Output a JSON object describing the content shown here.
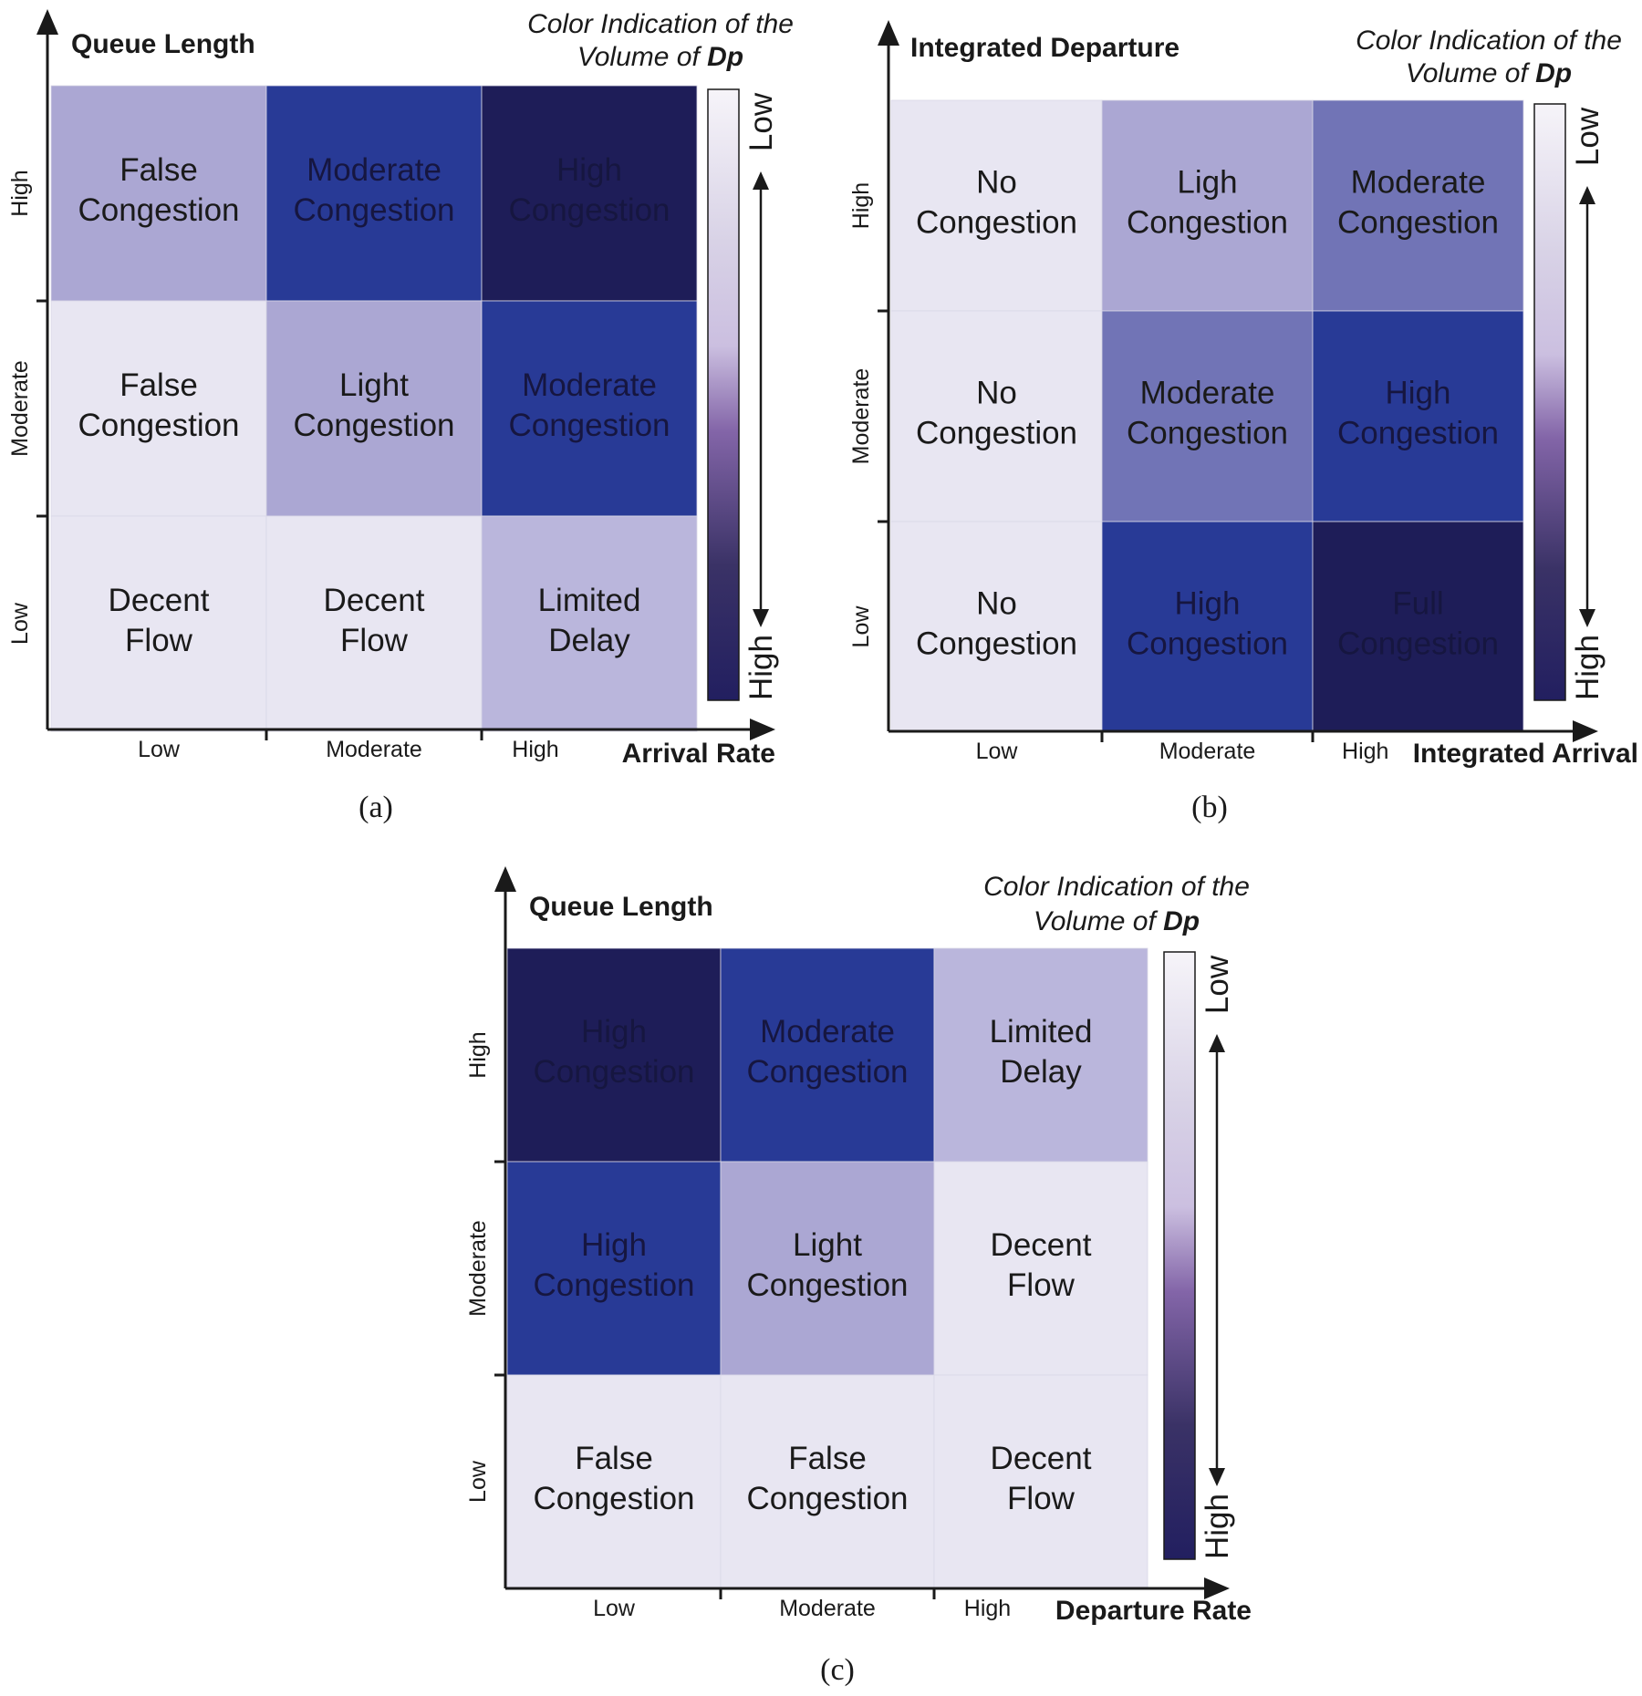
{
  "colors": {
    "very_light": "#e8e6f2",
    "light": "#aba7d3",
    "light_alt": "#bab6dc",
    "medium": "#7174b6",
    "strong": "#283a96",
    "dark": "#1e1d58",
    "text_dark": "#1a1a1a"
  },
  "panels": [
    {
      "id": "a",
      "caption": "(a)",
      "y_title": "Queue Length",
      "x_title": "Arrival Rate",
      "x_ticks": [
        "Low",
        "Moderate",
        "High"
      ],
      "y_ticks": [
        "Low",
        "Moderate",
        "High"
      ],
      "legend": {
        "title_line1": "Color Indication of the",
        "title_line2_prefix": "Volume of ",
        "title_line2_emph": "Dp",
        "top": "Low",
        "bottom": "High"
      },
      "cells": [
        [
          {
            "lines": [
              "False",
              "Congestion"
            ],
            "level": "light"
          },
          {
            "lines": [
              "Moderate",
              "Congestion"
            ],
            "level": "strong"
          },
          {
            "lines": [
              "High",
              "Congestion"
            ],
            "level": "dark"
          }
        ],
        [
          {
            "lines": [
              "False",
              "Congestion"
            ],
            "level": "very_light"
          },
          {
            "lines": [
              "Light",
              "Congestion"
            ],
            "level": "light"
          },
          {
            "lines": [
              "Moderate",
              "Congestion"
            ],
            "level": "strong"
          }
        ],
        [
          {
            "lines": [
              "Decent",
              "Flow"
            ],
            "level": "very_light"
          },
          {
            "lines": [
              "Decent",
              "Flow"
            ],
            "level": "very_light"
          },
          {
            "lines": [
              "Limited",
              "Delay"
            ],
            "level": "light_alt"
          }
        ]
      ]
    },
    {
      "id": "b",
      "caption": "(b)",
      "y_title": "Integrated Departure",
      "x_title": "Integrated Arrival",
      "x_ticks": [
        "Low",
        "Moderate",
        "High"
      ],
      "y_ticks": [
        "Low",
        "Moderate",
        "High"
      ],
      "legend": {
        "title_line1": "Color Indication of the",
        "title_line2_prefix": "Volume of ",
        "title_line2_emph": "Dp",
        "top": "Low",
        "bottom": "High"
      },
      "cells": [
        [
          {
            "lines": [
              "No",
              "Congestion"
            ],
            "level": "very_light"
          },
          {
            "lines": [
              "Ligh",
              "Congestion"
            ],
            "level": "light"
          },
          {
            "lines": [
              "Moderate",
              "Congestion"
            ],
            "level": "medium"
          }
        ],
        [
          {
            "lines": [
              "No",
              "Congestion"
            ],
            "level": "very_light"
          },
          {
            "lines": [
              "Moderate",
              "Congestion"
            ],
            "level": "medium"
          },
          {
            "lines": [
              "High",
              "Congestion"
            ],
            "level": "strong"
          }
        ],
        [
          {
            "lines": [
              "No",
              "Congestion"
            ],
            "level": "very_light"
          },
          {
            "lines": [
              "High",
              "Congestion"
            ],
            "level": "strong"
          },
          {
            "lines": [
              "Full",
              "Congestion"
            ],
            "level": "dark"
          }
        ]
      ]
    },
    {
      "id": "c",
      "caption": "(c)",
      "y_title": "Queue Length",
      "x_title": "Departure Rate",
      "x_ticks": [
        "Low",
        "Moderate",
        "High"
      ],
      "y_ticks": [
        "Low",
        "Moderate",
        "High"
      ],
      "legend": {
        "title_line1": "Color Indication of the",
        "title_line2_prefix": "Volume of ",
        "title_line2_emph": "Dp",
        "top": "Low",
        "bottom": "High"
      },
      "cells": [
        [
          {
            "lines": [
              "High",
              "Congestion"
            ],
            "level": "dark"
          },
          {
            "lines": [
              "Moderate",
              "Congestion"
            ],
            "level": "strong"
          },
          {
            "lines": [
              "Limited",
              "Delay"
            ],
            "level": "light_alt"
          }
        ],
        [
          {
            "lines": [
              "High",
              "Congestion"
            ],
            "level": "strong"
          },
          {
            "lines": [
              "Light",
              "Congestion"
            ],
            "level": "light"
          },
          {
            "lines": [
              "Decent",
              "Flow"
            ],
            "level": "very_light"
          }
        ],
        [
          {
            "lines": [
              "False",
              "Congestion"
            ],
            "level": "very_light"
          },
          {
            "lines": [
              "False",
              "Congestion"
            ],
            "level": "very_light"
          },
          {
            "lines": [
              "Decent",
              "Flow"
            ],
            "level": "very_light"
          }
        ]
      ]
    }
  ]
}
